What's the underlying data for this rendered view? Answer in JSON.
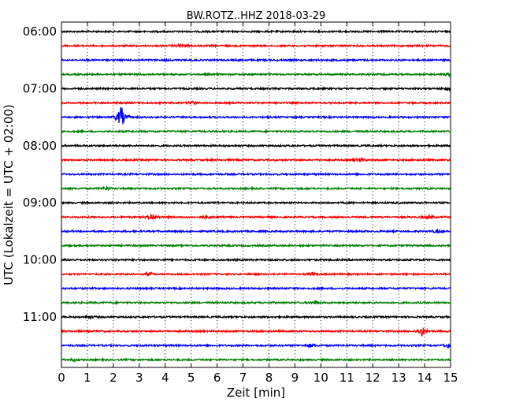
{
  "chart_data": {
    "type": "line",
    "title": "BW.ROTZ..HHZ 2018-03-29",
    "xlabel": "Zeit  [min]",
    "ylabel": "UTC (Lokalzeit = UTC + 02:00)",
    "xlim": [
      0,
      15
    ],
    "x_ticks": [
      "0",
      "1",
      "2",
      "3",
      "4",
      "5",
      "6",
      "7",
      "8",
      "9",
      "10",
      "11",
      "12",
      "13",
      "14",
      "15"
    ],
    "y_tick_labels": [
      "06:00",
      "07:00",
      "08:00",
      "09:00",
      "10:00",
      "11:00"
    ],
    "grid": "vertical dotted",
    "series_colors": [
      "#000000",
      "#ff0000",
      "#0000ff",
      "#008000"
    ],
    "series": [
      {
        "start": "06:00",
        "events": []
      },
      {
        "start": "06:15",
        "events": [
          {
            "t": 4.6,
            "amp": 0.5
          }
        ]
      },
      {
        "start": "06:30",
        "events": []
      },
      {
        "start": "06:45",
        "events": [
          {
            "t": 14.95,
            "amp": 0.5
          }
        ]
      },
      {
        "start": "07:00",
        "events": [
          {
            "t": 14.9,
            "amp": 0.4
          }
        ]
      },
      {
        "start": "07:15",
        "events": [
          {
            "t": 5.0,
            "amp": 0.4
          }
        ]
      },
      {
        "start": "07:30",
        "events": [
          {
            "t": 2.3,
            "amp": 3.0
          }
        ]
      },
      {
        "start": "07:45",
        "events": []
      },
      {
        "start": "08:00",
        "events": []
      },
      {
        "start": "08:15",
        "events": [
          {
            "t": 11.5,
            "amp": 0.6
          }
        ]
      },
      {
        "start": "08:30",
        "events": []
      },
      {
        "start": "08:45",
        "events": [
          {
            "t": 1.7,
            "amp": 0.4
          }
        ]
      },
      {
        "start": "09:00",
        "events": []
      },
      {
        "start": "09:15",
        "events": [
          {
            "t": 3.5,
            "amp": 0.9
          },
          {
            "t": 5.6,
            "amp": 0.4
          },
          {
            "t": 14.2,
            "amp": 0.4
          }
        ]
      },
      {
        "start": "09:30",
        "events": [
          {
            "t": 14.5,
            "amp": 0.4
          }
        ]
      },
      {
        "start": "09:45",
        "events": []
      },
      {
        "start": "10:00",
        "events": []
      },
      {
        "start": "10:15",
        "events": [
          {
            "t": 3.4,
            "amp": 0.4
          },
          {
            "t": 9.7,
            "amp": 0.3
          }
        ]
      },
      {
        "start": "10:30",
        "events": []
      },
      {
        "start": "10:45",
        "events": [
          {
            "t": 9.8,
            "amp": 0.5
          }
        ]
      },
      {
        "start": "11:00",
        "events": [
          {
            "t": 1.1,
            "amp": 0.3
          }
        ]
      },
      {
        "start": "11:15",
        "events": [
          {
            "t": 13.9,
            "amp": 1.2
          }
        ]
      },
      {
        "start": "11:30",
        "events": [
          {
            "t": 9.6,
            "amp": 0.4
          },
          {
            "t": 14.9,
            "amp": 0.5
          }
        ]
      },
      {
        "start": "11:45",
        "events": [
          {
            "t": 0.5,
            "amp": 0.3
          }
        ]
      }
    ]
  }
}
